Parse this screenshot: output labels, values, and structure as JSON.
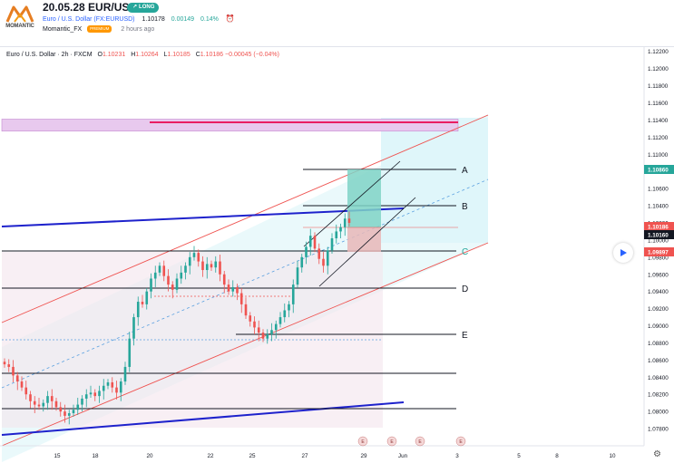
{
  "header": {
    "logo_text": "MOMANTIC",
    "idea_title": "20.05.28 EUR/USD",
    "badge": "LONG",
    "symbol": "Euro / U.S. Dollar (FX:EURUSD)",
    "price": "1.10178",
    "change": "0.00149",
    "change_pct": "0.14%",
    "author": "Momantic_FX",
    "author_badge": "PREMIUM",
    "time": "2 hours ago"
  },
  "legend": {
    "instrument": "Euro / U.S. Dollar · 2h · FXCM",
    "o_label": "O",
    "o": "1.10231",
    "h_label": "H",
    "h": "1.10264",
    "l_label": "L",
    "l": "1.10185",
    "c_label": "C",
    "c": "1.10186",
    "change": "−0.00045 (−0.04%)"
  },
  "chart_data": {
    "type": "line",
    "title": "Euro / U.S. Dollar · 2h · FXCM",
    "x_ticks": [
      "15",
      "18",
      "20",
      "22",
      "25",
      "27",
      "29",
      "Jun",
      "3",
      "5",
      "8",
      "10"
    ],
    "y_ticks": [
      "1.12200",
      "1.12000",
      "1.11800",
      "1.11600",
      "1.11400",
      "1.11200",
      "1.11000",
      "1.10800",
      "1.10600",
      "1.10400",
      "1.10200",
      "1.10000",
      "1.09800",
      "1.09600",
      "1.09400",
      "1.09200",
      "1.09000",
      "1.08800",
      "1.08600",
      "1.08400",
      "1.08200",
      "1.08000",
      "1.07800",
      "1.07600"
    ],
    "ylim": [
      1.076,
      1.1225
    ],
    "price_labels": [
      {
        "value": "1.10860",
        "color": "#26a69a"
      },
      {
        "value": "1.10186",
        "color": "#ef5350"
      },
      {
        "value": "1.10160",
        "color": "#131722"
      },
      {
        "value": "1.09897",
        "color": "#ef5350"
      }
    ],
    "levels": [
      {
        "label": "A",
        "price": 1.1086,
        "color": "#131722"
      },
      {
        "label": "B",
        "price": 1.1045,
        "color": "#131722"
      },
      {
        "label": "C",
        "price": 1.099,
        "color": "#26a69a"
      },
      {
        "label": "D",
        "price": 1.0962,
        "color": "#131722"
      },
      {
        "label": "E",
        "price": 1.0893,
        "color": "#131722"
      }
    ],
    "resistance_zone": [
      1.1127,
      1.1141
    ],
    "candles_close": [
      1.0855,
      1.0852,
      1.0842,
      1.0835,
      1.0828,
      1.082,
      1.0812,
      1.0808,
      1.0806,
      1.081,
      1.0818,
      1.0812,
      1.0805,
      1.08,
      1.0795,
      1.0798,
      1.0802,
      1.0808,
      1.0815,
      1.082,
      1.0822,
      1.0818,
      1.0824,
      1.083,
      1.0834,
      1.0828,
      1.0822,
      1.0835,
      1.0852,
      1.0885,
      1.091,
      1.0928,
      1.0925,
      1.094,
      1.0955,
      1.0962,
      1.097,
      1.0958,
      1.0948,
      1.0942,
      1.0955,
      1.0962,
      1.097,
      1.098,
      1.0985,
      1.0975,
      1.0965,
      1.0972,
      1.0968,
      1.0975,
      1.096,
      1.0948,
      1.094,
      1.0945,
      1.0938,
      1.0925,
      1.0912,
      1.0905,
      1.0898,
      1.0892,
      1.0885,
      1.089,
      1.0895,
      1.0902,
      1.091,
      1.0918,
      1.0925,
      1.0948,
      1.0968,
      1.098,
      1.0992,
      1.1005,
      1.099,
      1.0978,
      1.097,
      1.0988,
      1.1002,
      1.101,
      1.1015,
      1.1025,
      1.102
    ],
    "color_up": "#26a69a",
    "color_down": "#ef5350",
    "channel_fill": "#e8f8fb",
    "channel_line": "#ef5350",
    "trendline_color": "#1e22cc"
  },
  "footer": {
    "earnings_marks": [
      "E",
      "E",
      "E",
      "E"
    ]
  }
}
